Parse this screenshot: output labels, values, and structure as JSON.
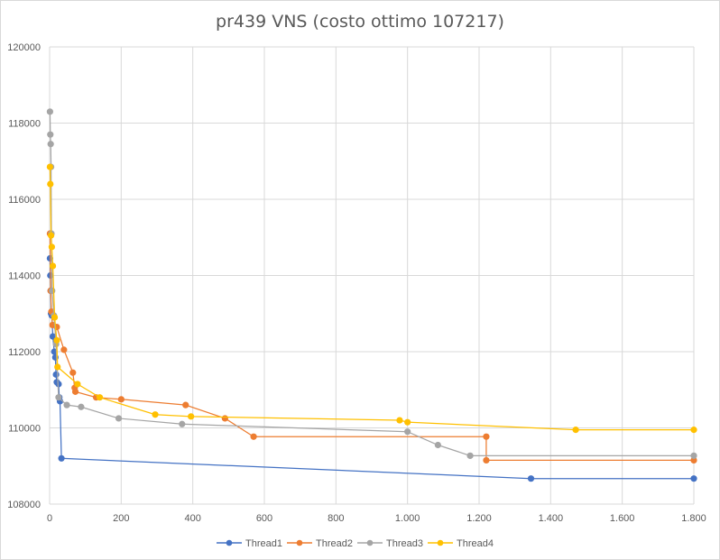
{
  "chart_data": {
    "type": "scatter",
    "title": "pr439 VNS (costo ottimo 107217)",
    "xlabel": "",
    "ylabel": "",
    "xlim": [
      0,
      1800
    ],
    "ylim": [
      108000,
      120000
    ],
    "x_ticks": [
      0,
      200,
      400,
      600,
      800,
      1000,
      1200,
      1400,
      1600,
      1800
    ],
    "x_tick_labels": [
      "0",
      "200",
      "400",
      "600",
      "800",
      "1.000",
      "1.200",
      "1.400",
      "1.600",
      "1.800"
    ],
    "y_ticks": [
      108000,
      110000,
      112000,
      114000,
      116000,
      118000,
      120000
    ],
    "y_tick_labels": [
      "108000",
      "110000",
      "112000",
      "114000",
      "116000",
      "118000",
      "120000"
    ],
    "grid": true,
    "legend": "bottom",
    "step": true,
    "series": [
      {
        "name": "Thread1",
        "color": "#4472c4",
        "points": [
          [
            1,
            114450
          ],
          [
            2,
            114000
          ],
          [
            3,
            113600
          ],
          [
            4,
            113000
          ],
          [
            6,
            112950
          ],
          [
            9,
            112400
          ],
          [
            13,
            112000
          ],
          [
            16,
            111850
          ],
          [
            18,
            111400
          ],
          [
            20,
            111200
          ],
          [
            25,
            111150
          ],
          [
            27,
            110800
          ],
          [
            29,
            110700
          ],
          [
            33,
            109200
          ],
          [
            1345,
            108670
          ],
          [
            1800,
            108670
          ]
        ]
      },
      {
        "name": "Thread2",
        "color": "#ed7d31",
        "points": [
          [
            1,
            115100
          ],
          [
            3,
            113600
          ],
          [
            5,
            113050
          ],
          [
            8,
            112700
          ],
          [
            20,
            112650
          ],
          [
            40,
            112050
          ],
          [
            65,
            111450
          ],
          [
            70,
            111050
          ],
          [
            72,
            110950
          ],
          [
            130,
            110800
          ],
          [
            200,
            110750
          ],
          [
            380,
            110600
          ],
          [
            490,
            110250
          ],
          [
            570,
            109770
          ],
          [
            1220,
            109770
          ],
          [
            1220,
            109150
          ],
          [
            1800,
            109150
          ]
        ]
      },
      {
        "name": "Thread3",
        "color": "#a5a5a5",
        "points": [
          [
            1,
            118300
          ],
          [
            2,
            117700
          ],
          [
            3,
            117450
          ],
          [
            4,
            116850
          ],
          [
            5,
            115100
          ],
          [
            7,
            113600
          ],
          [
            12,
            112950
          ],
          [
            18,
            112200
          ],
          [
            25,
            110800
          ],
          [
            48,
            110600
          ],
          [
            88,
            110550
          ],
          [
            193,
            110250
          ],
          [
            370,
            110100
          ],
          [
            1000,
            109900
          ],
          [
            1085,
            109550
          ],
          [
            1175,
            109270
          ],
          [
            1800,
            109270
          ]
        ]
      },
      {
        "name": "Thread4",
        "color": "#ffc000",
        "points": [
          [
            1,
            116850
          ],
          [
            2,
            116400
          ],
          [
            4,
            115050
          ],
          [
            6,
            114750
          ],
          [
            9,
            114250
          ],
          [
            14,
            112900
          ],
          [
            20,
            112300
          ],
          [
            22,
            111600
          ],
          [
            78,
            111150
          ],
          [
            140,
            110800
          ],
          [
            295,
            110350
          ],
          [
            395,
            110300
          ],
          [
            978,
            110200
          ],
          [
            1000,
            110150
          ],
          [
            1470,
            109950
          ],
          [
            1800,
            109950
          ]
        ]
      }
    ]
  }
}
